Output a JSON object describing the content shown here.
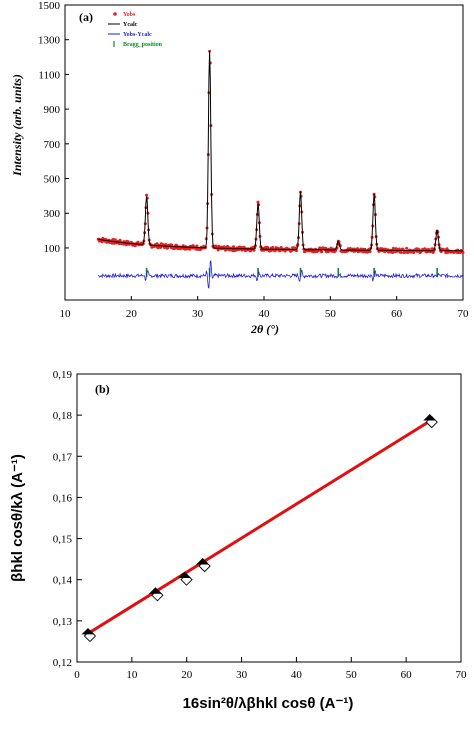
{
  "chart_data": [
    {
      "type": "line",
      "panel_label": "(a)",
      "xlabel": "2θ (°)",
      "ylabel": "Intensity (arb. units)",
      "xlim": [
        10,
        70
      ],
      "ylim": [
        -200,
        1500
      ],
      "xticks": [
        10,
        20,
        30,
        40,
        50,
        60,
        70
      ],
      "yticks": [
        100,
        300,
        500,
        700,
        900,
        1100,
        1300,
        1500
      ],
      "xtick_labels": [
        "10",
        "20",
        "30",
        "40",
        "50",
        "60",
        "70"
      ],
      "ytick_labels": [
        "100",
        "300",
        "500",
        "700",
        "900",
        "1100",
        "1300",
        "1500"
      ],
      "legend_position": "top-left",
      "baseline": 95,
      "peaks": [
        {
          "x": 22.3,
          "y": 375
        },
        {
          "x": 31.8,
          "y": 1230
        },
        {
          "x": 39.1,
          "y": 360
        },
        {
          "x": 45.5,
          "y": 430
        },
        {
          "x": 51.2,
          "y": 145
        },
        {
          "x": 56.6,
          "y": 420
        },
        {
          "x": 66.1,
          "y": 215
        }
      ],
      "bragg_positions": [
        22.3,
        31.8,
        39.1,
        45.5,
        51.2,
        56.6,
        66.1
      ],
      "series": [
        {
          "name": "Yobs",
          "color": "#e82020"
        },
        {
          "name": "Ycalc",
          "color": "#000000"
        },
        {
          "name": "Yobs-Ycalc",
          "color": "#2020e0"
        },
        {
          "name": "Bragg_position",
          "color": "#0a8a2a"
        }
      ]
    },
    {
      "type": "scatter",
      "panel_label": "(b)",
      "xlabel": "16sin²θ/λβhkl cosθ (A⁻¹)",
      "ylabel": "βhkl cosθ/kλ (A⁻¹)",
      "xlim": [
        0,
        70
      ],
      "ylim": [
        0.12,
        0.19
      ],
      "xticks": [
        0,
        10,
        20,
        30,
        40,
        50,
        60,
        70
      ],
      "yticks": [
        0.12,
        0.13,
        0.14,
        0.15,
        0.16,
        0.17,
        0.18,
        0.19
      ],
      "xtick_labels": [
        "0",
        "10",
        "20",
        "30",
        "40",
        "50",
        "60",
        "70"
      ],
      "ytick_labels": [
        "0,12",
        "0,13",
        "0,14",
        "0,15",
        "0,16",
        "0,17",
        "0,18",
        "0,19"
      ],
      "points": [
        {
          "x": 2.0,
          "y": 0.1268
        },
        {
          "x": 14.3,
          "y": 0.1367
        },
        {
          "x": 19.6,
          "y": 0.1405
        },
        {
          "x": 22.9,
          "y": 0.1438
        },
        {
          "x": 64.3,
          "y": 0.1788
        }
      ],
      "fit_line": {
        "x": [
          1.5,
          64.5
        ],
        "y": [
          0.1265,
          0.1787
        ],
        "color": "#e01010"
      }
    }
  ]
}
